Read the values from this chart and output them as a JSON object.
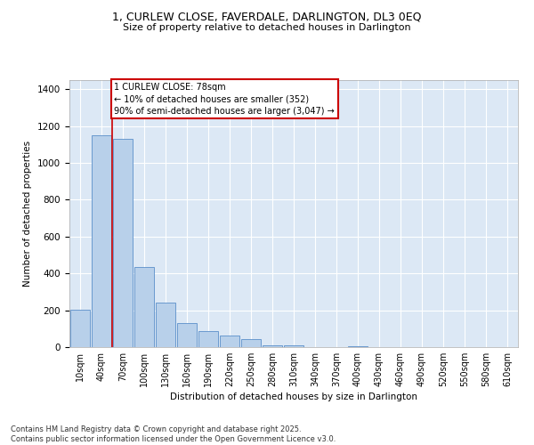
{
  "title": "1, CURLEW CLOSE, FAVERDALE, DARLINGTON, DL3 0EQ",
  "subtitle": "Size of property relative to detached houses in Darlington",
  "xlabel": "Distribution of detached houses by size in Darlington",
  "ylabel": "Number of detached properties",
  "categories": [
    "10sqm",
    "40sqm",
    "70sqm",
    "100sqm",
    "130sqm",
    "160sqm",
    "190sqm",
    "220sqm",
    "250sqm",
    "280sqm",
    "310sqm",
    "340sqm",
    "370sqm",
    "400sqm",
    "430sqm",
    "460sqm",
    "490sqm",
    "520sqm",
    "550sqm",
    "580sqm",
    "610sqm"
  ],
  "values": [
    205,
    1150,
    1130,
    435,
    240,
    130,
    85,
    65,
    45,
    10,
    10,
    0,
    0,
    5,
    0,
    0,
    0,
    0,
    0,
    0,
    0
  ],
  "bar_color": "#b8d0ea",
  "bar_edge_color": "#5b8fc9",
  "background_color": "#dce8f5",
  "grid_color": "#ffffff",
  "vline_color": "#cc0000",
  "annotation_text": "1 CURLEW CLOSE: 78sqm\n← 10% of detached houses are smaller (352)\n90% of semi-detached houses are larger (3,047) →",
  "annotation_box_color": "#ffffff",
  "annotation_box_edge_color": "#cc0000",
  "ylim": [
    0,
    1450
  ],
  "yticks": [
    0,
    200,
    400,
    600,
    800,
    1000,
    1200,
    1400
  ],
  "footer": "Contains HM Land Registry data © Crown copyright and database right 2025.\nContains public sector information licensed under the Open Government Licence v3.0."
}
